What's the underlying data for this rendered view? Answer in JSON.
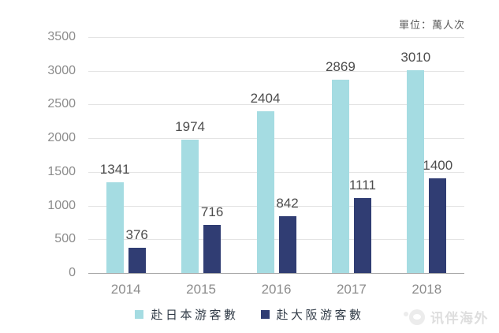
{
  "chart_data": {
    "type": "bar",
    "title": "",
    "unit_note": "單位：萬人次",
    "categories": [
      "2014",
      "2015",
      "2016",
      "2017",
      "2018"
    ],
    "series": [
      {
        "name": "赴日本游客數",
        "color": "#a5dce2",
        "values": [
          1341,
          1974,
          2404,
          2869,
          3010
        ]
      },
      {
        "name": "赴大阪游客數",
        "color": "#303d73",
        "values": [
          376,
          716,
          842,
          1111,
          1400
        ]
      }
    ],
    "xlabel": "",
    "ylabel": "",
    "ylim": [
      0,
      3500
    ],
    "ytick_step": 500,
    "yticks": [
      0,
      500,
      1000,
      1500,
      2000,
      2500,
      3000,
      3500
    ],
    "grid": true,
    "value_labels": true,
    "legend_position": "bottom"
  },
  "watermark": {
    "text": "讯伴海外"
  }
}
